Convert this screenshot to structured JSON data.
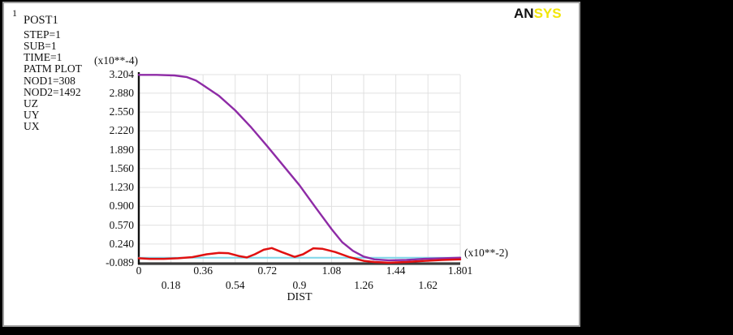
{
  "window_label": "1",
  "logo": {
    "black_part": "AN",
    "yellow_part": "SYS"
  },
  "annotation": {
    "title": "POST1",
    "lines": [
      "STEP=1",
      "SUB=1",
      "TIME=1",
      "PATM PLOT",
      "NOD1=308",
      "NOD2=1492",
      "UZ",
      "UY",
      "UX"
    ]
  },
  "chart_data": {
    "type": "line",
    "title": "",
    "xlabel": "DIST",
    "ylabel": "",
    "x_unit_label": "(x10**-2)",
    "y_unit_label": "(x10**-4)",
    "xlim": [
      0,
      1.801
    ],
    "ylim": [
      -0.089,
      3.204
    ],
    "grid": true,
    "legend_position": "left annotation column (UZ, UY, UX)",
    "x_ticks": [
      "0",
      "0.18",
      "0.36",
      "0.54",
      "0.72",
      "0.9",
      "1.08",
      "1.26",
      "1.44",
      "1.62",
      "1.801"
    ],
    "x_tick_values": [
      0,
      0.18,
      0.36,
      0.54,
      0.72,
      0.9,
      1.08,
      1.26,
      1.44,
      1.62,
      1.801
    ],
    "y_ticks": [
      "3.204",
      "2.880",
      "2.550",
      "2.220",
      "1.890",
      "1.560",
      "1.230",
      "0.900",
      "0.570",
      "0.240",
      "-0.089"
    ],
    "y_tick_values": [
      3.204,
      2.88,
      2.55,
      2.22,
      1.89,
      1.56,
      1.23,
      0.9,
      0.57,
      0.24,
      -0.089
    ],
    "colors": {
      "grid": "#e0e0e0",
      "y_axis": "#111111",
      "x_axis": "#3c3c3c"
    },
    "series": [
      {
        "name": "UX",
        "color": "#7fd6e8",
        "width": 2,
        "x": [
          0,
          1.801
        ],
        "y": [
          0.0,
          0.0
        ]
      },
      {
        "name": "UZ",
        "color": "#8e2ba6",
        "width": 2.4,
        "x": [
          0,
          0.1,
          0.2,
          0.27,
          0.32,
          0.36,
          0.45,
          0.54,
          0.63,
          0.72,
          0.81,
          0.9,
          0.99,
          1.08,
          1.14,
          1.2,
          1.26,
          1.32,
          1.4,
          1.5,
          1.6,
          1.7,
          1.801
        ],
        "y": [
          3.2,
          3.2,
          3.19,
          3.16,
          3.1,
          3.02,
          2.83,
          2.58,
          2.28,
          1.95,
          1.61,
          1.27,
          0.88,
          0.5,
          0.27,
          0.12,
          0.02,
          -0.03,
          -0.045,
          -0.04,
          -0.02,
          -0.01,
          0.0
        ]
      },
      {
        "name": "UY",
        "color": "#e01111",
        "width": 2.5,
        "x": [
          0,
          0.06,
          0.14,
          0.22,
          0.3,
          0.38,
          0.45,
          0.5,
          0.56,
          0.605,
          0.65,
          0.7,
          0.745,
          0.8,
          0.873,
          0.92,
          0.978,
          1.03,
          1.1,
          1.18,
          1.26,
          1.32,
          1.4,
          1.5,
          1.6,
          1.7,
          1.801
        ],
        "y": [
          -0.01,
          -0.02,
          -0.02,
          -0.01,
          0.01,
          0.06,
          0.085,
          0.08,
          0.03,
          0.005,
          0.06,
          0.14,
          0.17,
          0.1,
          0.015,
          0.06,
          0.165,
          0.155,
          0.1,
          0.01,
          -0.055,
          -0.075,
          -0.088,
          -0.075,
          -0.055,
          -0.04,
          -0.03
        ]
      }
    ]
  }
}
